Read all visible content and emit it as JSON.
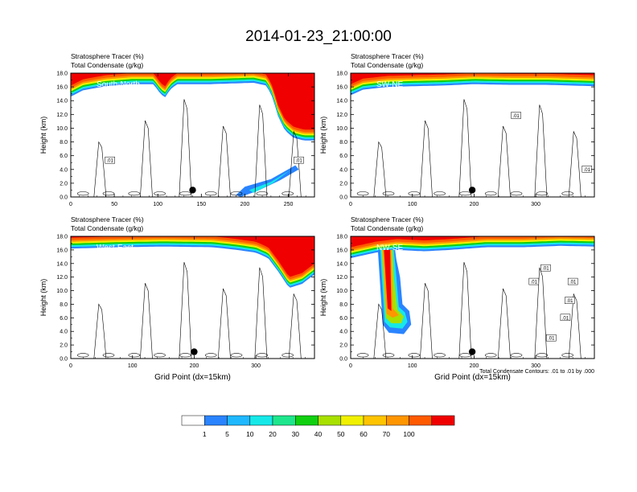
{
  "figure": {
    "title": "2014-01-23_21:00:00",
    "contour_note": "Total Condensate Contours: .01 to .01 by .000"
  },
  "colors": {
    "scale": [
      "#ffffff",
      "#2a84ff",
      "#1fb8ff",
      "#16e8e8",
      "#1ee68c",
      "#10d010",
      "#a8e000",
      "#f0f000",
      "#ffc400",
      "#ff9600",
      "#ff5a00",
      "#f00000"
    ],
    "contour": "#000000"
  },
  "colorbar": {
    "labels": [
      "1",
      "5",
      "10",
      "20",
      "30",
      "40",
      "50",
      "60",
      "70",
      "100"
    ]
  },
  "chart_data": [
    {
      "type": "heatmap",
      "panel_label": "South-North",
      "title_line1": "Stratosphere Tracer   (%)",
      "title_line2": "Total Condensate   (g/kg)",
      "ylabel": "Height (km)",
      "xlabel": "",
      "ylim": [
        0,
        18
      ],
      "yticks": [
        "0.0",
        "2.0",
        "4.0",
        "6.0",
        "8.0",
        "10.0",
        "12.0",
        "14.0",
        "16.0",
        "18.0"
      ],
      "xlim": [
        0,
        280
      ],
      "xticks": [
        0,
        50,
        100,
        150,
        200,
        250
      ],
      "contour_labels": [
        {
          "text": ".01",
          "x": 45,
          "y": 5.3
        },
        {
          "text": ".01",
          "x": 262,
          "y": 5.3
        }
      ],
      "marker": {
        "x": 140,
        "y": 1.0
      },
      "tracer_base_km": [
        [
          0,
          14.6
        ],
        [
          14,
          15.5
        ],
        [
          40,
          16.1
        ],
        [
          70,
          16.4
        ],
        [
          95,
          16.4
        ],
        [
          102,
          15.2
        ],
        [
          108,
          14.4
        ],
        [
          114,
          15.6
        ],
        [
          122,
          16.4
        ],
        [
          160,
          16.4
        ],
        [
          210,
          16.6
        ],
        [
          225,
          16.2
        ],
        [
          232,
          14.4
        ],
        [
          238,
          11.8
        ],
        [
          246,
          9.7
        ],
        [
          256,
          8.6
        ],
        [
          268,
          8.2
        ],
        [
          280,
          8.2
        ]
      ]
    },
    {
      "type": "heatmap",
      "panel_label": "SW-NE",
      "title_line1": "Stratosphere Tracer   (%)",
      "title_line2": "Total Condensate   (g/kg)",
      "ylabel": "Height (km)",
      "xlabel": "",
      "ylim": [
        0,
        18
      ],
      "yticks": [
        "0.0",
        "2.0",
        "4.0",
        "6.0",
        "8.0",
        "10.0",
        "12.0",
        "14.0",
        "16.0",
        "18.0"
      ],
      "xlim": [
        0,
        395
      ],
      "xticks": [
        0,
        100,
        200,
        300
      ],
      "contour_labels": [
        {
          "text": ".01",
          "x": 268,
          "y": 11.8
        },
        {
          "text": ".01",
          "x": 383,
          "y": 4.0
        }
      ],
      "marker": {
        "x": 197,
        "y": 1.0
      },
      "tracer_base_km": [
        [
          0,
          14.8
        ],
        [
          20,
          15.6
        ],
        [
          60,
          16.0
        ],
        [
          100,
          16.1
        ],
        [
          150,
          16.2
        ],
        [
          200,
          16.4
        ],
        [
          260,
          16.3
        ],
        [
          320,
          16.3
        ],
        [
          395,
          16.1
        ]
      ]
    },
    {
      "type": "heatmap",
      "panel_label": "West-East",
      "title_line1": "Stratosphere Tracer   (%)",
      "title_line2": "Total Condensate   (g/kg)",
      "ylabel": "Height (km)",
      "xlabel": "Grid Point (dx=15km)",
      "ylim": [
        0,
        18
      ],
      "yticks": [
        "0.0",
        "2.0",
        "4.0",
        "6.0",
        "8.0",
        "10.0",
        "12.0",
        "14.0",
        "16.0",
        "18.0"
      ],
      "xlim": [
        0,
        395
      ],
      "xticks": [
        0,
        100,
        200,
        300
      ],
      "contour_labels": [],
      "marker": {
        "x": 200,
        "y": 1.0
      },
      "tracer_base_km": [
        [
          0,
          16.2
        ],
        [
          80,
          16.4
        ],
        [
          150,
          16.5
        ],
        [
          230,
          16.4
        ],
        [
          270,
          16.0
        ],
        [
          300,
          15.6
        ],
        [
          320,
          14.8
        ],
        [
          338,
          12.6
        ],
        [
          354,
          10.4
        ],
        [
          375,
          11.0
        ],
        [
          395,
          12.4
        ]
      ]
    },
    {
      "type": "heatmap",
      "panel_label": "NW-SE",
      "title_line1": "Stratosphere Tracer   (%)",
      "title_line2": "Total Condensate   (g/kg)",
      "ylabel": "Height (km)",
      "xlabel": "Grid Point (dx=15km)",
      "ylim": [
        0,
        18
      ],
      "yticks": [
        "0.0",
        "2.0",
        "4.0",
        "6.0",
        "8.0",
        "10.0",
        "12.0",
        "14.0",
        "16.0",
        "18.0"
      ],
      "xlim": [
        0,
        395
      ],
      "xticks": [
        0,
        100,
        200,
        300
      ],
      "contour_labels": [
        {
          "text": ".01",
          "x": 297,
          "y": 11.3
        },
        {
          "text": ".01",
          "x": 316,
          "y": 13.3
        },
        {
          "text": ".01",
          "x": 360,
          "y": 11.3
        },
        {
          "text": ".01",
          "x": 355,
          "y": 8.5
        },
        {
          "text": ".01",
          "x": 348,
          "y": 6.0
        },
        {
          "text": ".01",
          "x": 325,
          "y": 3.0
        }
      ],
      "marker": {
        "x": 197,
        "y": 1.0
      },
      "tracer_base_km": [
        [
          0,
          14.8
        ],
        [
          40,
          15.6
        ],
        [
          75,
          16.0
        ],
        [
          120,
          15.8
        ],
        [
          160,
          16.0
        ],
        [
          220,
          16.4
        ],
        [
          280,
          16.4
        ],
        [
          340,
          16.6
        ],
        [
          395,
          16.5
        ]
      ]
    }
  ]
}
